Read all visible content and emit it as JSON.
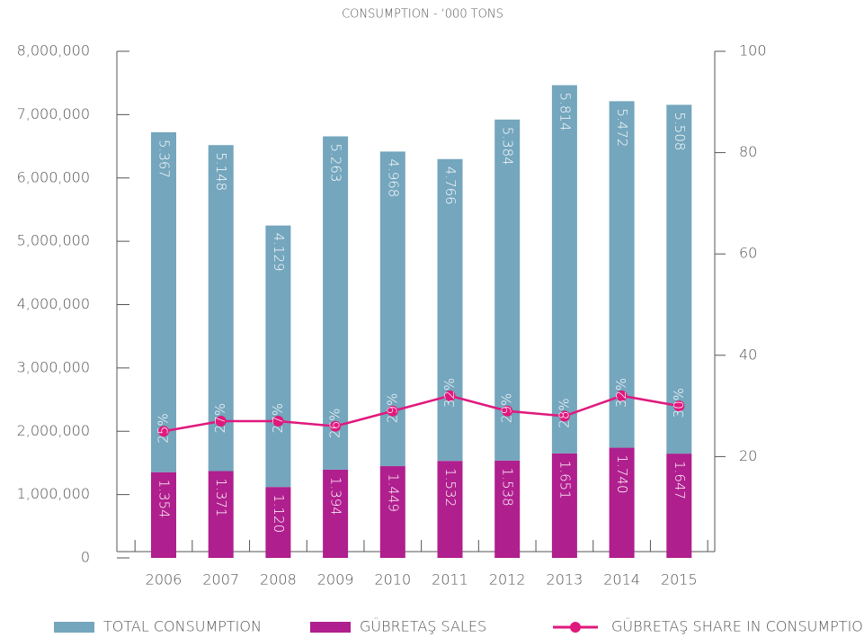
{
  "chart_data": {
    "type": "bar",
    "title": "CONSUMPTION - ‘000 TONS",
    "categories": [
      "2006",
      "2007",
      "2008",
      "2009",
      "2010",
      "2011",
      "2012",
      "2013",
      "2014",
      "2015"
    ],
    "series": [
      {
        "name": "TOTAL CONSUMPTION",
        "type": "bar",
        "color": "#74a6bd",
        "values": [
          5367000,
          5148000,
          4129000,
          5263000,
          4968000,
          4766000,
          5384000,
          5814000,
          5472000,
          5508000
        ],
        "value_labels": [
          "5.367",
          "5.148",
          "4.129",
          "5.263",
          "4.968",
          "4.766",
          "5.384",
          "5.814",
          "5.472",
          "5.508"
        ]
      },
      {
        "name": "GÜBRETAŞ SALES",
        "type": "bar",
        "color": "#b01f8e",
        "values": [
          1354000,
          1371000,
          1120000,
          1394000,
          1449000,
          1532000,
          1538000,
          1651000,
          1740000,
          1647000
        ],
        "value_labels": [
          "1.354",
          "1.371",
          "1.120",
          "1.394",
          "1.449",
          "1.532",
          "1.538",
          "1.651",
          "1.740",
          "1.647"
        ]
      },
      {
        "name": "GÜBRETAŞ SHARE IN CONSUMPTION",
        "type": "line",
        "axis": "y2",
        "color": "#e0197d",
        "values": [
          25,
          27,
          27,
          26,
          29,
          32,
          29,
          28,
          32,
          30
        ],
        "value_labels": [
          "25%",
          "27%",
          "27%",
          "26%",
          "29%",
          "32%",
          "29%",
          "28%",
          "32%",
          "30%"
        ]
      }
    ],
    "stacked": true,
    "ylim": [
      0,
      8000000
    ],
    "yticks": [
      0,
      {
        "value": 1000000,
        "label": "1,000,000"
      },
      {
        "value": 2000000,
        "label": "2,000,000"
      },
      {
        "value": 3000000,
        "label": "3,000,000"
      },
      {
        "value": 4000000,
        "label": "4,000,000"
      },
      {
        "value": 5000000,
        "label": "5,000,000"
      },
      {
        "value": 6000000,
        "label": "6,000,000"
      },
      {
        "value": 7000000,
        "label": "7,000,000"
      },
      {
        "value": 8000000,
        "label": "8,000,000"
      }
    ],
    "y2lim": [
      0,
      100
    ],
    "y2ticks": [
      20,
      40,
      60,
      80,
      100
    ],
    "legend": "bottom"
  }
}
